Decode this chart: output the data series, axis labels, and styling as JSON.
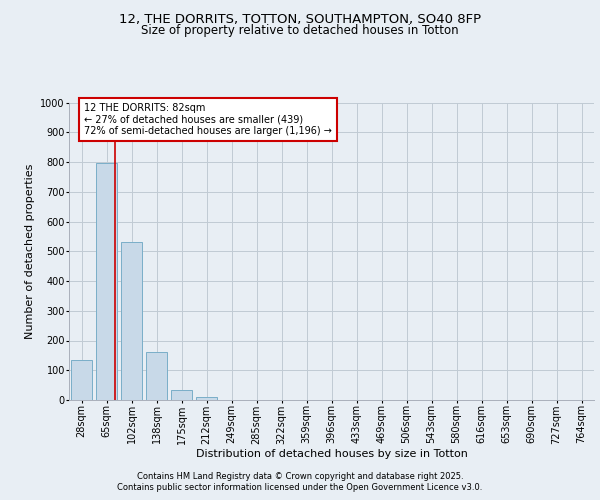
{
  "title_line1": "12, THE DORRITS, TOTTON, SOUTHAMPTON, SO40 8FP",
  "title_line2": "Size of property relative to detached houses in Totton",
  "xlabel": "Distribution of detached houses by size in Totton",
  "ylabel": "Number of detached properties",
  "categories": [
    "28sqm",
    "65sqm",
    "102sqm",
    "138sqm",
    "175sqm",
    "212sqm",
    "249sqm",
    "285sqm",
    "322sqm",
    "359sqm",
    "396sqm",
    "433sqm",
    "469sqm",
    "506sqm",
    "543sqm",
    "580sqm",
    "616sqm",
    "653sqm",
    "690sqm",
    "727sqm",
    "764sqm"
  ],
  "values": [
    135,
    795,
    530,
    160,
    35,
    10,
    0,
    0,
    0,
    0,
    0,
    0,
    0,
    0,
    0,
    0,
    0,
    0,
    0,
    0,
    0
  ],
  "bar_color": "#c8d9e8",
  "bar_edge_color": "#7aaec8",
  "grid_color": "#c0cad4",
  "background_color": "#e8eef4",
  "red_line_x": 1.35,
  "annotation_text": "12 THE DORRITS: 82sqm\n← 27% of detached houses are smaller (439)\n72% of semi-detached houses are larger (1,196) →",
  "annotation_box_color": "#ffffff",
  "annotation_box_edge": "#cc0000",
  "red_line_color": "#cc0000",
  "footer_line1": "Contains HM Land Registry data © Crown copyright and database right 2025.",
  "footer_line2": "Contains public sector information licensed under the Open Government Licence v3.0.",
  "ylim": [
    0,
    1000
  ],
  "yticks": [
    0,
    100,
    200,
    300,
    400,
    500,
    600,
    700,
    800,
    900,
    1000
  ],
  "title_fontsize": 9.5,
  "subtitle_fontsize": 8.5,
  "axis_label_fontsize": 8,
  "tick_fontsize": 7,
  "annotation_fontsize": 7,
  "footer_fontsize": 6
}
